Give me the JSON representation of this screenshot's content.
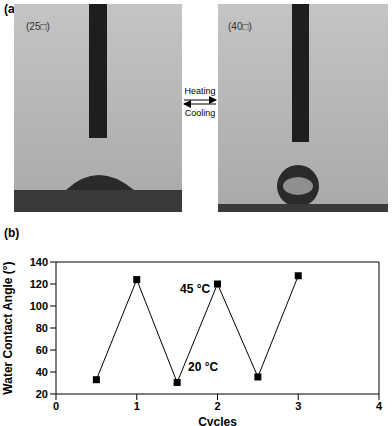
{
  "panel_a": {
    "label": "(a)",
    "left_label": "(25□)",
    "right_label": "(40□)",
    "arrow_top": "Heating",
    "arrow_bottom": "Cooling"
  },
  "chart_data": {
    "type": "line",
    "panel_label": "(b)",
    "x": [
      0.5,
      1,
      1.5,
      2,
      2.5,
      3
    ],
    "values": [
      33,
      124,
      30.5,
      120,
      35.5,
      127.5
    ],
    "color": "#000000",
    "marker": "square",
    "xlim": [
      0,
      4
    ],
    "xticks": [
      0,
      1,
      2,
      3,
      4
    ],
    "ylim": [
      20,
      140
    ],
    "yticks": [
      20,
      40,
      60,
      80,
      100,
      120,
      140
    ],
    "xlabel": "Cycles",
    "ylabel": "Water Contact Angle (°)",
    "annotations": [
      "45 °C",
      "20 °C"
    ],
    "grid": false
  }
}
